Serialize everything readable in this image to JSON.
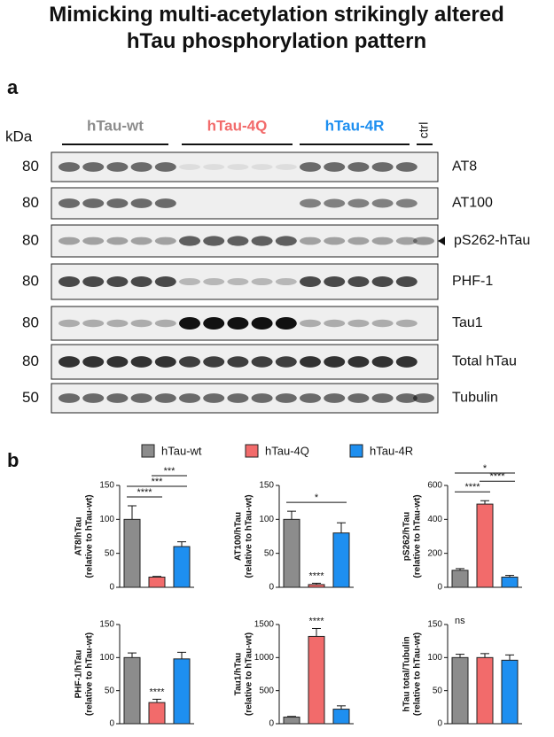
{
  "title": "Mimicking multi-acetylation strikingly altered hTau phosphorylation pattern",
  "panel_a": {
    "label": "a",
    "unit": "kDa",
    "ctrl": "ctrl",
    "groups": [
      {
        "name": "hTau-wt",
        "color": "#8c8c8c"
      },
      {
        "name": "hTau-4Q",
        "color": "#f26b6b"
      },
      {
        "name": "hTau-4R",
        "color": "#1e8ff0"
      }
    ],
    "rows": [
      {
        "marker": "80",
        "name": "AT8"
      },
      {
        "marker": "80",
        "name": "AT100"
      },
      {
        "marker": "80",
        "name": "pS262-hTau"
      },
      {
        "marker": "80",
        "name": "PHF-1"
      },
      {
        "marker": "80",
        "name": "Tau1"
      },
      {
        "marker": "80",
        "name": "Total hTau"
      },
      {
        "marker": "50",
        "name": "Tubulin"
      }
    ]
  },
  "panel_b": {
    "label": "b"
  },
  "legend": [
    {
      "name": "hTau-wt",
      "color": "#8c8c8c"
    },
    {
      "name": "hTau-4Q",
      "color": "#f26b6b"
    },
    {
      "name": "hTau-4R",
      "color": "#1e8ff0"
    }
  ],
  "chart_data": [
    {
      "type": "bar",
      "ylabel": [
        "AT8/hTau",
        "(relative to hTau-wt)"
      ],
      "values": [
        100,
        15,
        60
      ],
      "errors": [
        20,
        1,
        7
      ],
      "ylim": [
        0,
        150
      ],
      "yticks": [
        0,
        50,
        100,
        150
      ],
      "annotations": [
        {
          "text": "****",
          "from": 0,
          "to": 1
        },
        {
          "text": "***",
          "from": 0,
          "to": 2
        },
        {
          "text": "***",
          "from": 1,
          "to": 2
        }
      ]
    },
    {
      "type": "bar",
      "ylabel": [
        "AT100/hTau",
        "(relative to hTau-wt)"
      ],
      "values": [
        100,
        4,
        80
      ],
      "errors": [
        12,
        2,
        15
      ],
      "ylim": [
        0,
        150
      ],
      "yticks": [
        0,
        50,
        100,
        150
      ],
      "annotations": [
        {
          "text": "*",
          "from": 0,
          "to": 2
        },
        {
          "text": "****",
          "at": 1
        }
      ]
    },
    {
      "type": "bar",
      "ylabel": [
        "pS262/hTau",
        "(relative to hTau-wt)"
      ],
      "values": [
        100,
        490,
        60
      ],
      "errors": [
        10,
        20,
        10
      ],
      "ylim": [
        0,
        600
      ],
      "yticks": [
        0,
        200,
        400,
        600
      ],
      "annotations": [
        {
          "text": "****",
          "from": 0,
          "to": 1
        },
        {
          "text": "****",
          "from": 1,
          "to": 2
        },
        {
          "text": "*",
          "from": 0,
          "to": 2
        }
      ]
    },
    {
      "type": "bar",
      "ylabel": [
        "PHF-1/hTau",
        "(relative to hTau-wt)"
      ],
      "values": [
        100,
        32,
        98
      ],
      "errors": [
        7,
        5,
        10
      ],
      "ylim": [
        0,
        150
      ],
      "yticks": [
        0,
        50,
        100,
        150
      ],
      "annotations": [
        {
          "text": "****",
          "at": 1
        }
      ]
    },
    {
      "type": "bar",
      "ylabel": [
        "Tau1/hTau",
        "(relative to hTau-wt)"
      ],
      "values": [
        100,
        1320,
        220
      ],
      "errors": [
        10,
        120,
        50
      ],
      "ylim": [
        0,
        1500
      ],
      "yticks": [
        0,
        500,
        1000,
        1500
      ],
      "annotations": [
        {
          "text": "****",
          "at": 1
        }
      ]
    },
    {
      "type": "bar",
      "ylabel": [
        "hTau total/Tubulin",
        "(relative to hTau-wt)"
      ],
      "values": [
        100,
        100,
        96
      ],
      "errors": [
        5,
        6,
        8
      ],
      "ylim": [
        0,
        150
      ],
      "yticks": [
        0,
        50,
        100,
        150
      ],
      "annotations": [
        {
          "text": "ns"
        }
      ]
    }
  ]
}
